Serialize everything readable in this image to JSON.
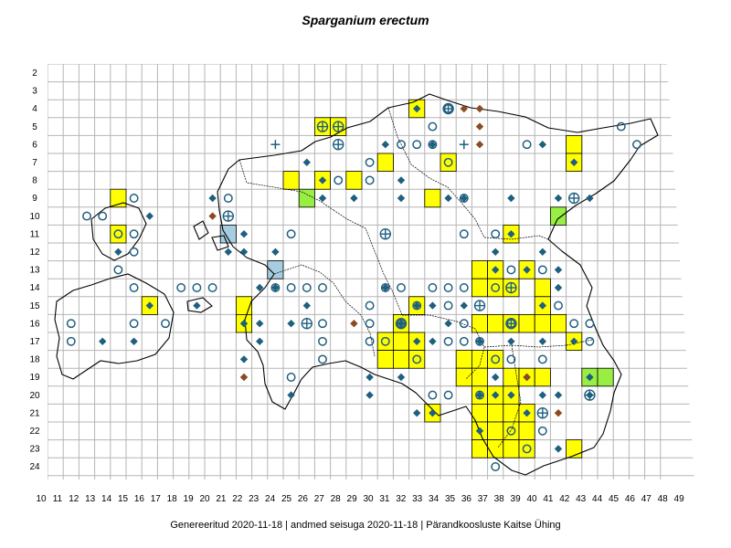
{
  "title": "Sparganium erectum",
  "footer": "Genereeritud 2020-11-18  |  andmed seisuga 2020-11-18  |  Pärandkoosluste Kaitse Ühing",
  "colors": {
    "yellow": "#ffff00",
    "green": "#99ee44",
    "blue_cell": "#a7cde0",
    "marker": "#1f5f7f",
    "brown": "#8b4a22",
    "grid": "#b5b5b5",
    "border": "#000000"
  },
  "x_labels": [
    "10",
    "11",
    "12",
    "13",
    "14",
    "15",
    "16",
    "17",
    "18",
    "19",
    "20",
    "21",
    "22",
    "23",
    "24",
    "25",
    "26",
    "27",
    "28",
    "29",
    "30",
    "31",
    "32",
    "33",
    "34",
    "35",
    "36",
    "37",
    "38",
    "39",
    "40",
    "41",
    "42",
    "43",
    "44",
    "45",
    "46",
    "47",
    "48",
    "49"
  ],
  "y_labels": [
    "2",
    "3",
    "4",
    "5",
    "6",
    "7",
    "8",
    "9",
    "10",
    "11",
    "12",
    "13",
    "14",
    "15",
    "16",
    "17",
    "18",
    "19",
    "20",
    "21",
    "22",
    "23",
    "24"
  ],
  "yellow_cells": [
    [
      28,
      5
    ],
    [
      29,
      5
    ],
    [
      34,
      4
    ],
    [
      32,
      7
    ],
    [
      26,
      8
    ],
    [
      28,
      8
    ],
    [
      30,
      8
    ],
    [
      35,
      9
    ],
    [
      36,
      7
    ],
    [
      15,
      9
    ],
    [
      15,
      11
    ],
    [
      40,
      11
    ],
    [
      38,
      13
    ],
    [
      39,
      13
    ],
    [
      38,
      14
    ],
    [
      39,
      14
    ],
    [
      40,
      14
    ],
    [
      41,
      13
    ],
    [
      42,
      14
    ],
    [
      42,
      15
    ],
    [
      17,
      15
    ],
    [
      23,
      15
    ],
    [
      23,
      16
    ],
    [
      33,
      16
    ],
    [
      34,
      15
    ],
    [
      32,
      17
    ],
    [
      33,
      17
    ],
    [
      34,
      17
    ],
    [
      32,
      18
    ],
    [
      33,
      18
    ],
    [
      34,
      18
    ],
    [
      38,
      16
    ],
    [
      39,
      16
    ],
    [
      40,
      16
    ],
    [
      41,
      16
    ],
    [
      42,
      16
    ],
    [
      43,
      16
    ],
    [
      37,
      18
    ],
    [
      38,
      18
    ],
    [
      39,
      18
    ],
    [
      40,
      19
    ],
    [
      41,
      19
    ],
    [
      42,
      19
    ],
    [
      37,
      19
    ],
    [
      38,
      19
    ],
    [
      38,
      20
    ],
    [
      39,
      20
    ],
    [
      40,
      20
    ],
    [
      38,
      21
    ],
    [
      39,
      21
    ],
    [
      40,
      21
    ],
    [
      41,
      21
    ],
    [
      38,
      22
    ],
    [
      39,
      22
    ],
    [
      40,
      22
    ],
    [
      41,
      22
    ],
    [
      38,
      23
    ],
    [
      39,
      23
    ],
    [
      40,
      23
    ],
    [
      41,
      23
    ],
    [
      44,
      17
    ],
    [
      44,
      23
    ],
    [
      35,
      21
    ],
    [
      44,
      6
    ],
    [
      44,
      7
    ]
  ],
  "green_cells": [
    [
      27,
      9
    ],
    [
      43,
      10
    ],
    [
      45,
      19
    ],
    [
      46,
      19
    ]
  ],
  "blue_cells": [
    [
      22,
      11
    ],
    [
      25,
      13
    ]
  ],
  "diamonds": [
    [
      34,
      4
    ],
    [
      35,
      6
    ],
    [
      32,
      6
    ],
    [
      27,
      7
    ],
    [
      28,
      8
    ],
    [
      28,
      9
    ],
    [
      30,
      9
    ],
    [
      36,
      9
    ],
    [
      40,
      9
    ],
    [
      43,
      9
    ],
    [
      45,
      9
    ],
    [
      21,
      9
    ],
    [
      17,
      10
    ],
    [
      23,
      11
    ],
    [
      15,
      12
    ],
    [
      22,
      12
    ],
    [
      23,
      12
    ],
    [
      25,
      12
    ],
    [
      24,
      14
    ],
    [
      25,
      14
    ],
    [
      39,
      12
    ],
    [
      42,
      12
    ],
    [
      40,
      11
    ],
    [
      43,
      13
    ],
    [
      43,
      14
    ],
    [
      41,
      13
    ],
    [
      39,
      13
    ],
    [
      17,
      15
    ],
    [
      20,
      15
    ],
    [
      23,
      16
    ],
    [
      24,
      16
    ],
    [
      24,
      17
    ],
    [
      23,
      18
    ],
    [
      27,
      15
    ],
    [
      26,
      16
    ],
    [
      33,
      16
    ],
    [
      35,
      15
    ],
    [
      34,
      17
    ],
    [
      33,
      19
    ],
    [
      37,
      15
    ],
    [
      36,
      16
    ],
    [
      38,
      17
    ],
    [
      40,
      17
    ],
    [
      42,
      17
    ],
    [
      44,
      17
    ],
    [
      39,
      19
    ],
    [
      41,
      19
    ],
    [
      39,
      20
    ],
    [
      40,
      20
    ],
    [
      38,
      20
    ],
    [
      45,
      19
    ],
    [
      45,
      20
    ],
    [
      43,
      20
    ],
    [
      42,
      20
    ],
    [
      35,
      21
    ],
    [
      41,
      21
    ],
    [
      38,
      22
    ],
    [
      43,
      23
    ],
    [
      31,
      19
    ],
    [
      26,
      20
    ],
    [
      14,
      17
    ],
    [
      16,
      17
    ],
    [
      31,
      20
    ],
    [
      34,
      15
    ],
    [
      32,
      14
    ],
    [
      35,
      17
    ],
    [
      42,
      15
    ],
    [
      37,
      9
    ],
    [
      44,
      7
    ],
    [
      42,
      6
    ],
    [
      34,
      21
    ],
    [
      33,
      8
    ],
    [
      33,
      9
    ]
  ],
  "brown_diamonds": [
    [
      37,
      4
    ],
    [
      38,
      4
    ],
    [
      38,
      5
    ],
    [
      38,
      6
    ],
    [
      21,
      10
    ],
    [
      30,
      16
    ],
    [
      23,
      19
    ],
    [
      41,
      19
    ],
    [
      43,
      21
    ]
  ],
  "circles": [
    [
      36,
      4
    ],
    [
      35,
      5
    ],
    [
      33,
      6
    ],
    [
      34,
      6
    ],
    [
      35,
      6
    ],
    [
      41,
      6
    ],
    [
      31,
      7
    ],
    [
      29,
      8
    ],
    [
      31,
      8
    ],
    [
      36,
      7
    ],
    [
      37,
      9
    ],
    [
      16,
      9
    ],
    [
      13,
      10
    ],
    [
      14,
      10
    ],
    [
      22,
      9
    ],
    [
      15,
      11
    ],
    [
      16,
      11
    ],
    [
      16,
      12
    ],
    [
      26,
      11
    ],
    [
      39,
      11
    ],
    [
      37,
      11
    ],
    [
      47,
      5
    ],
    [
      48,
      6
    ],
    [
      15,
      13
    ],
    [
      16,
      14
    ],
    [
      20,
      14
    ],
    [
      21,
      14
    ],
    [
      19,
      14
    ],
    [
      25,
      14
    ],
    [
      26,
      14
    ],
    [
      27,
      14
    ],
    [
      28,
      14
    ],
    [
      32,
      14
    ],
    [
      33,
      14
    ],
    [
      34,
      15
    ],
    [
      35,
      14
    ],
    [
      36,
      14
    ],
    [
      39,
      14
    ],
    [
      37,
      14
    ],
    [
      40,
      13
    ],
    [
      42,
      13
    ],
    [
      43,
      15
    ],
    [
      45,
      16
    ],
    [
      12,
      16
    ],
    [
      12,
      17
    ],
    [
      16,
      16
    ],
    [
      18,
      16
    ],
    [
      28,
      16
    ],
    [
      28,
      17
    ],
    [
      28,
      18
    ],
    [
      31,
      15
    ],
    [
      31,
      16
    ],
    [
      31,
      17
    ],
    [
      32,
      17
    ],
    [
      33,
      16
    ],
    [
      34,
      18
    ],
    [
      36,
      15
    ],
    [
      37,
      16
    ],
    [
      37,
      17
    ],
    [
      40,
      16
    ],
    [
      44,
      16
    ],
    [
      38,
      17
    ],
    [
      40,
      18
    ],
    [
      39,
      18
    ],
    [
      36,
      17
    ],
    [
      36,
      20
    ],
    [
      35,
      20
    ],
    [
      38,
      20
    ],
    [
      26,
      19
    ],
    [
      39,
      24
    ],
    [
      40,
      22
    ],
    [
      41,
      23
    ],
    [
      42,
      22
    ],
    [
      42,
      18
    ],
    [
      45,
      17
    ]
  ],
  "crossed_circles": [
    [
      22,
      10
    ],
    [
      28,
      5
    ],
    [
      29,
      5
    ],
    [
      29,
      6
    ],
    [
      36,
      4
    ],
    [
      32,
      11
    ],
    [
      38,
      15
    ],
    [
      27,
      16
    ],
    [
      33,
      16
    ],
    [
      40,
      14
    ],
    [
      40,
      16
    ],
    [
      42,
      21
    ],
    [
      44,
      9
    ],
    [
      45,
      20
    ]
  ],
  "crosses": [
    [
      25,
      6
    ],
    [
      37,
      6
    ]
  ]
}
